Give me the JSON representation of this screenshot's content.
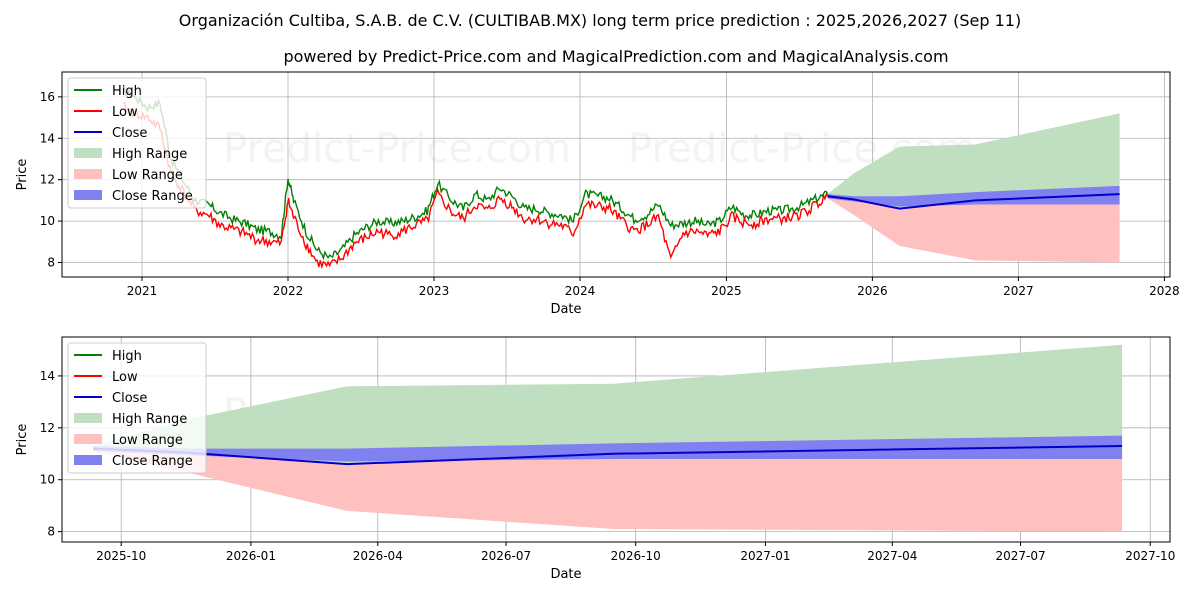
{
  "title": "Organización Cultiba, S.A.B. de C.V. (CULTIBAB.MX) long term price prediction : 2025,2026,2027 (Sep 11)",
  "subtitle": "powered by Predict-Price.com and MagicalPrediction.com and MagicalAnalysis.com",
  "watermark": "Predict-Price.com",
  "colors": {
    "high": "#008000",
    "low": "#ff0000",
    "close": "#0000cc",
    "high_range": "#c0dfc0",
    "low_range": "#ffc0c0",
    "close_range": "#8080f0"
  },
  "chart_data": [
    {
      "type": "line",
      "xlabel": "Date",
      "ylabel": "Price",
      "x_axis": "date",
      "xlim": [
        "2020-06-15",
        "2028-01-15"
      ],
      "ylim": [
        7.3,
        17.2
      ],
      "xticks": [
        "2021",
        "2022",
        "2023",
        "2024",
        "2025",
        "2026",
        "2027",
        "2028"
      ],
      "yticks": [
        8,
        10,
        12,
        14,
        16
      ],
      "grid": true,
      "legend_position": "top-left",
      "legend": [
        "High",
        "Low",
        "Close",
        "High Range",
        "Low Range",
        "Close Range"
      ],
      "history": {
        "x": [
          "2020-11-15",
          "2020-12-15",
          "2021-01-15",
          "2021-02-15",
          "2021-03-15",
          "2021-04-15",
          "2021-05-15",
          "2021-06-15",
          "2021-07-15",
          "2021-08-15",
          "2021-09-15",
          "2021-10-15",
          "2021-11-15",
          "2021-12-15",
          "2022-01-01",
          "2022-01-15",
          "2022-02-15",
          "2022-03-15",
          "2022-04-15",
          "2022-05-15",
          "2022-06-15",
          "2022-07-15",
          "2022-08-15",
          "2022-09-15",
          "2022-10-15",
          "2022-11-15",
          "2022-12-15",
          "2023-01-10",
          "2023-02-15",
          "2023-03-15",
          "2023-04-15",
          "2023-05-15",
          "2023-06-15",
          "2023-07-15",
          "2023-08-15",
          "2023-09-15",
          "2023-10-15",
          "2023-11-15",
          "2023-12-15",
          "2024-01-15",
          "2024-02-15",
          "2024-03-15",
          "2024-04-15",
          "2024-05-15",
          "2024-06-15",
          "2024-07-15",
          "2024-08-15",
          "2024-09-15",
          "2024-10-15",
          "2024-11-15",
          "2024-12-15",
          "2025-01-15",
          "2025-02-15",
          "2025-03-15",
          "2025-04-15",
          "2025-05-15",
          "2025-06-15",
          "2025-07-15",
          "2025-08-15",
          "2025-09-11"
        ],
        "high": [
          16.3,
          16.0,
          15.5,
          15.7,
          13.0,
          11.9,
          11.0,
          10.8,
          10.4,
          10.1,
          9.9,
          9.6,
          9.5,
          9.3,
          12.1,
          11.0,
          9.5,
          8.6,
          8.2,
          8.6,
          9.3,
          9.7,
          10.0,
          9.9,
          10.0,
          10.2,
          10.5,
          11.8,
          11.0,
          10.6,
          11.3,
          11.0,
          11.6,
          11.2,
          10.6,
          10.6,
          10.4,
          10.3,
          10.0,
          11.3,
          11.2,
          11.1,
          10.6,
          10.1,
          10.3,
          10.8,
          9.8,
          9.9,
          10.0,
          9.8,
          10.0,
          10.7,
          10.3,
          10.3,
          10.5,
          10.5,
          10.6,
          10.8,
          11.1,
          11.3
        ],
        "low": [
          15.5,
          15.2,
          15.0,
          14.5,
          12.3,
          11.4,
          10.5,
          10.3,
          9.8,
          9.6,
          9.4,
          9.1,
          9.0,
          8.9,
          11.0,
          10.2,
          8.9,
          8.0,
          7.8,
          8.2,
          8.9,
          9.2,
          9.5,
          9.3,
          9.5,
          9.8,
          10.0,
          11.3,
          10.4,
          10.1,
          10.8,
          10.5,
          11.1,
          10.7,
          10.1,
          10.1,
          9.9,
          9.8,
          9.4,
          10.8,
          10.7,
          10.6,
          10.0,
          9.5,
          9.8,
          10.2,
          8.1,
          9.4,
          9.5,
          9.3,
          9.5,
          10.2,
          9.9,
          9.9,
          10.1,
          10.1,
          10.2,
          10.4,
          10.8,
          11.2
        ]
      },
      "forecast": {
        "x": [
          "2025-09-11",
          "2025-11-15",
          "2026-03-10",
          "2026-09-15",
          "2027-09-11"
        ],
        "close": [
          11.2,
          11.05,
          10.6,
          11.0,
          11.3
        ],
        "high_range": [
          [
            11.2,
            11.3
          ],
          [
            11.0,
            12.3
          ],
          [
            10.6,
            13.6
          ],
          [
            11.0,
            13.7
          ],
          [
            11.3,
            15.2
          ]
        ],
        "low_range": [
          [
            11.2,
            11.1
          ],
          [
            11.0,
            10.3
          ],
          [
            10.6,
            8.8
          ],
          [
            11.0,
            8.1
          ],
          [
            11.3,
            8.0
          ]
        ],
        "close_range": [
          [
            11.1,
            11.3
          ],
          [
            10.95,
            11.2
          ],
          [
            10.7,
            11.2
          ],
          [
            10.8,
            11.4
          ],
          [
            10.8,
            11.7
          ]
        ]
      }
    },
    {
      "type": "line",
      "xlabel": "Date",
      "ylabel": "Price",
      "x_axis": "date",
      "xlim": [
        "2025-08-20",
        "2027-10-15"
      ],
      "ylim": [
        7.6,
        15.5
      ],
      "xticks": [
        "2025-10",
        "2026-01",
        "2026-04",
        "2026-07",
        "2026-10",
        "2027-01",
        "2027-04",
        "2027-07",
        "2027-10"
      ],
      "yticks": [
        8,
        10,
        12,
        14
      ],
      "grid": true,
      "legend_position": "top-left",
      "legend": [
        "High",
        "Low",
        "Close",
        "High Range",
        "Low Range",
        "Close Range"
      ],
      "forecast": {
        "x": [
          "2025-09-11",
          "2025-11-15",
          "2026-03-10",
          "2026-09-15",
          "2027-09-11"
        ],
        "close": [
          11.2,
          11.05,
          10.6,
          11.0,
          11.3
        ],
        "high_range": [
          [
            11.2,
            11.3
          ],
          [
            11.0,
            12.3
          ],
          [
            10.6,
            13.6
          ],
          [
            11.0,
            13.7
          ],
          [
            11.3,
            15.2
          ]
        ],
        "low_range": [
          [
            11.2,
            11.1
          ],
          [
            11.0,
            10.3
          ],
          [
            10.6,
            8.8
          ],
          [
            11.0,
            8.1
          ],
          [
            11.3,
            8.0
          ]
        ],
        "close_range": [
          [
            11.1,
            11.3
          ],
          [
            10.95,
            11.2
          ],
          [
            10.7,
            11.2
          ],
          [
            10.8,
            11.4
          ],
          [
            10.8,
            11.7
          ]
        ]
      }
    }
  ]
}
